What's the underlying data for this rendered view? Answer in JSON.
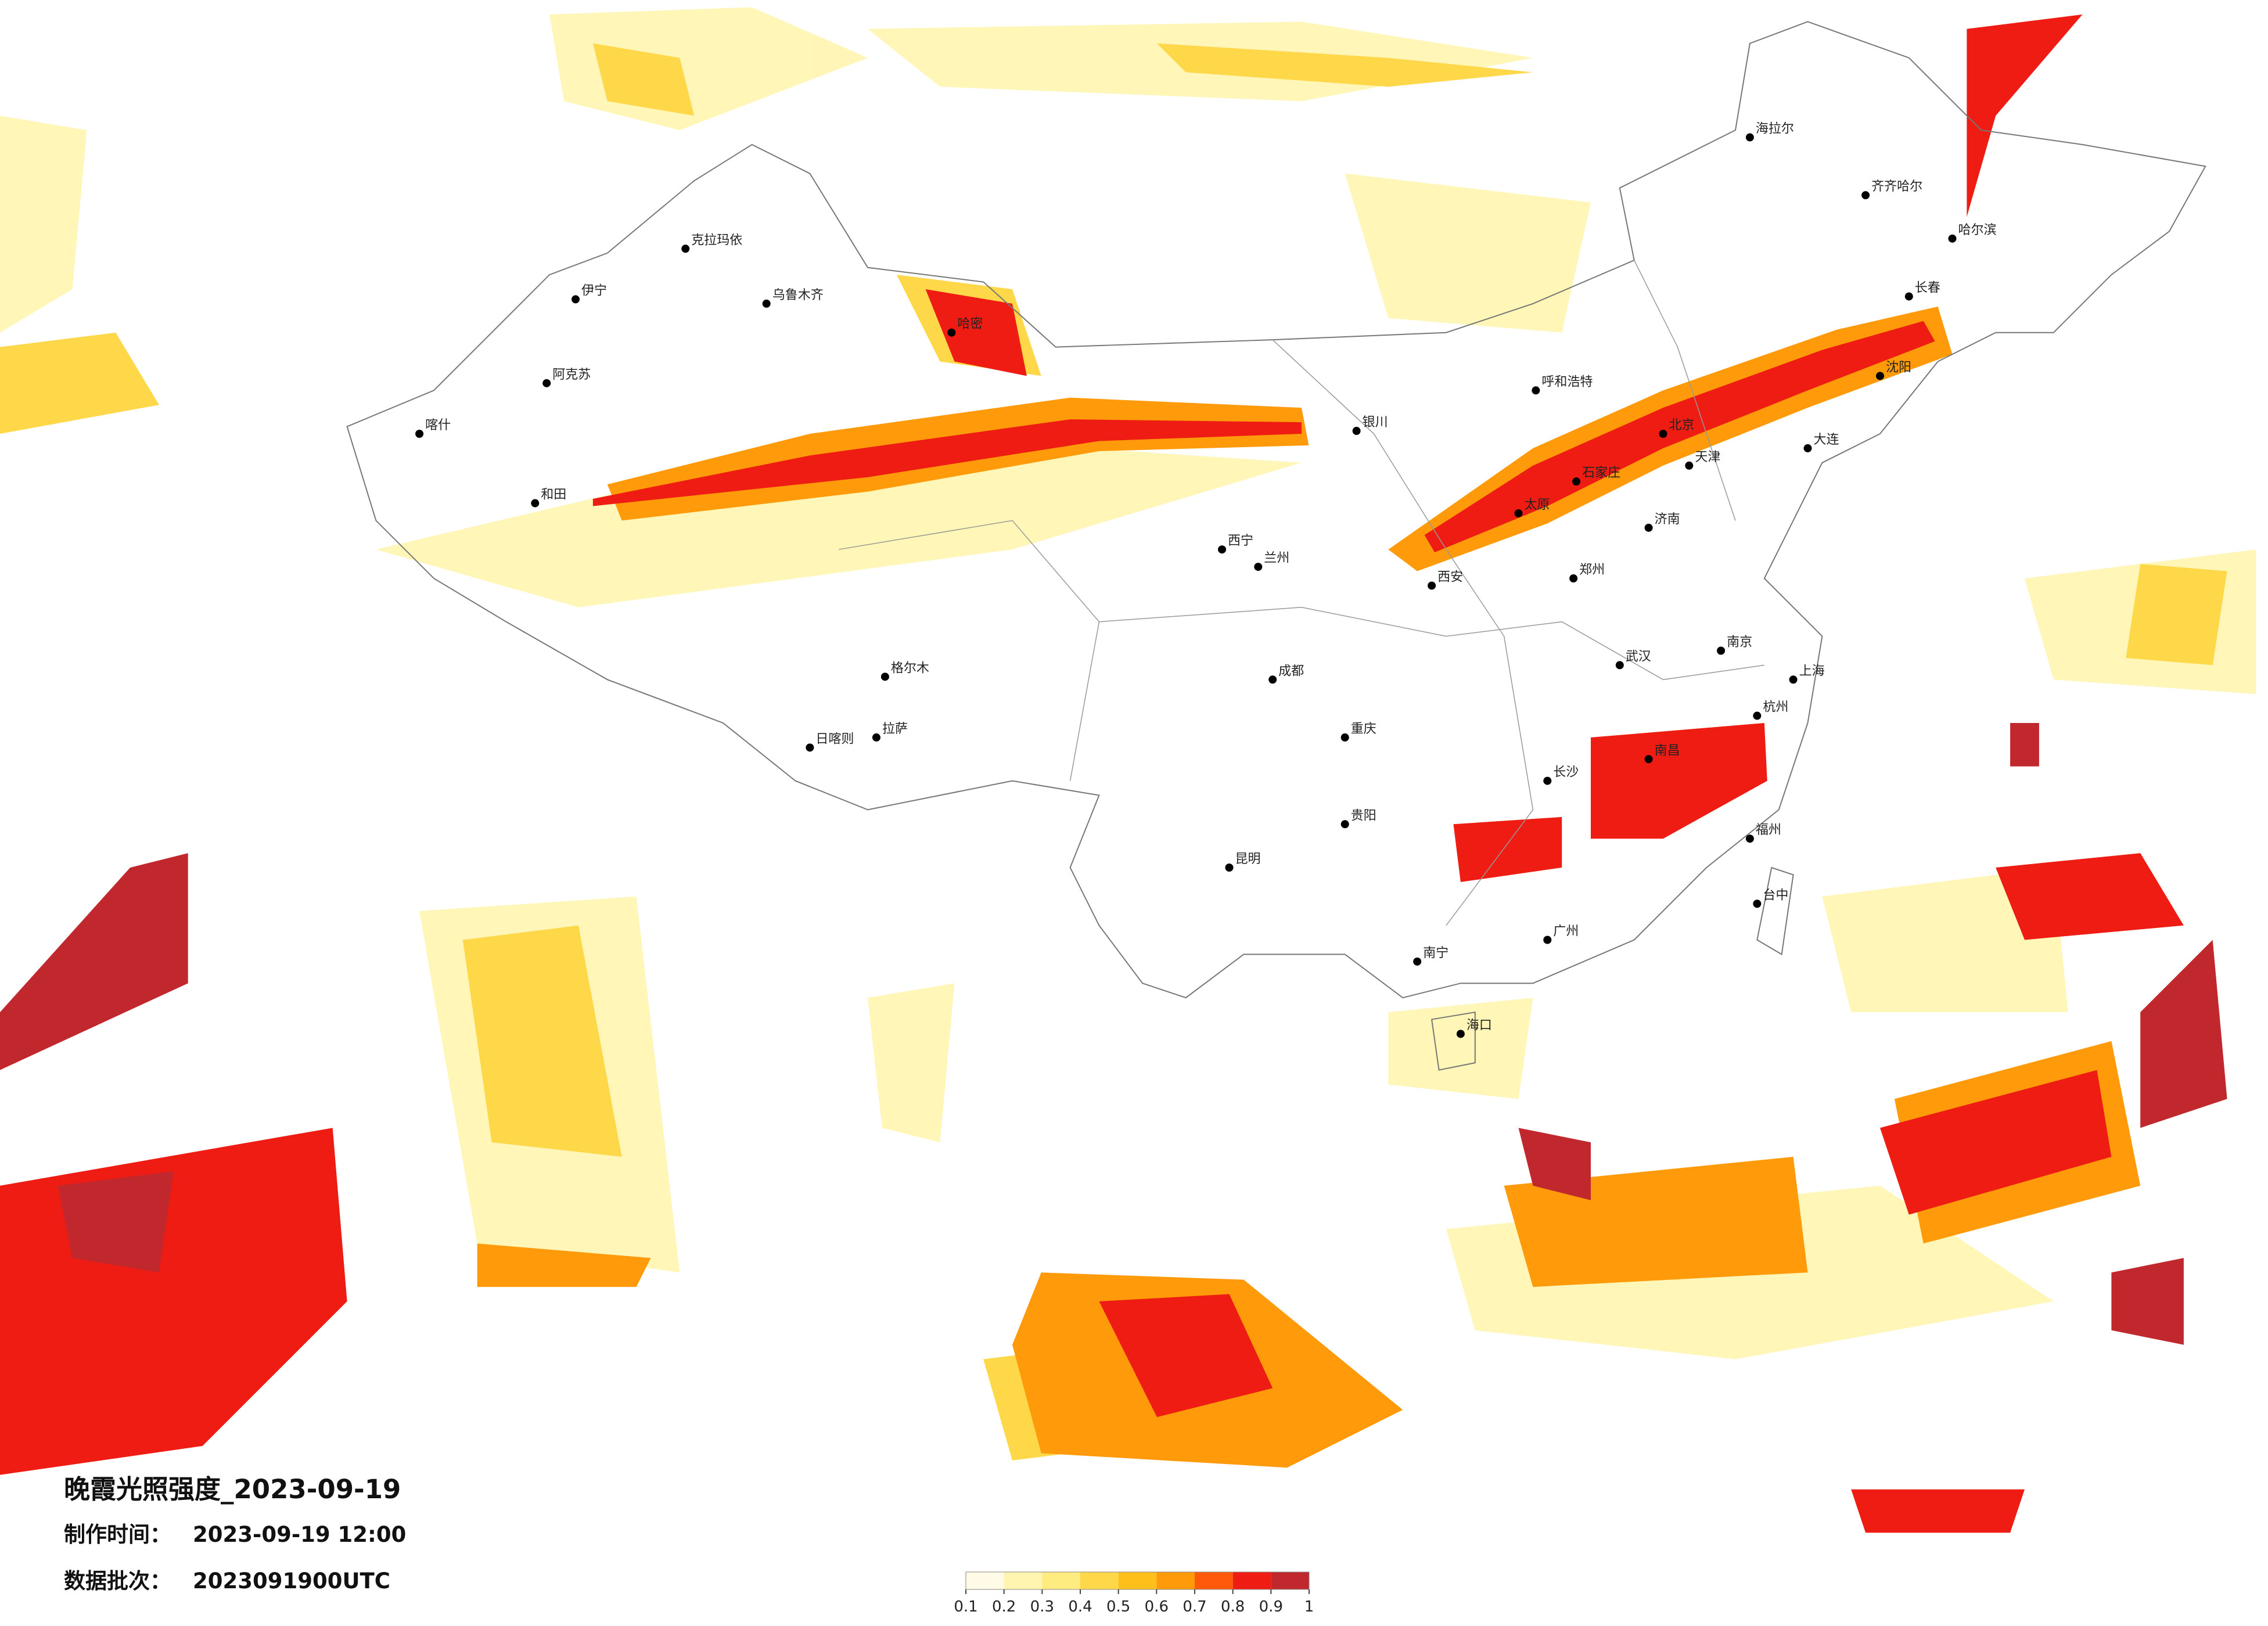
{
  "title": "晚霞光照强度_2023-09-19",
  "info": [
    {
      "label": "制作时间：",
      "value": "2023-09-19 12:00"
    },
    {
      "label": "数据批次：",
      "value": "2023091900UTC"
    }
  ],
  "colorbar": {
    "ticks": [
      0.1,
      0.2,
      0.3,
      0.4,
      0.5,
      0.6,
      0.7,
      0.8,
      0.9,
      1
    ],
    "colors": [
      "#fffbe6",
      "#fff5b0",
      "#ffec80",
      "#ffd84a",
      "#ffbf1a",
      "#ff9a0a",
      "#ff5a0a",
      "#ee1c12",
      "#c0282e"
    ]
  },
  "cities": [
    "克拉玛依",
    "乌鲁木齐",
    "伊宁",
    "阿克苏",
    "喀什",
    "和田",
    "哈密",
    "格尔木",
    "拉萨",
    "日喀则",
    "西宁",
    "兰州",
    "银川",
    "呼和浩特",
    "北京",
    "天津",
    "石家庄",
    "太原",
    "济南",
    "郑州",
    "西安",
    "成都",
    "重庆",
    "武汉",
    "长沙",
    "南京",
    "上海",
    "杭州",
    "福州",
    "广州",
    "南宁",
    "海口",
    "昆明",
    "贵阳",
    "哈尔滨",
    "长春",
    "沈阳",
    "大连",
    "海拉尔",
    "齐齐哈尔",
    "台中",
    "南昌"
  ]
}
